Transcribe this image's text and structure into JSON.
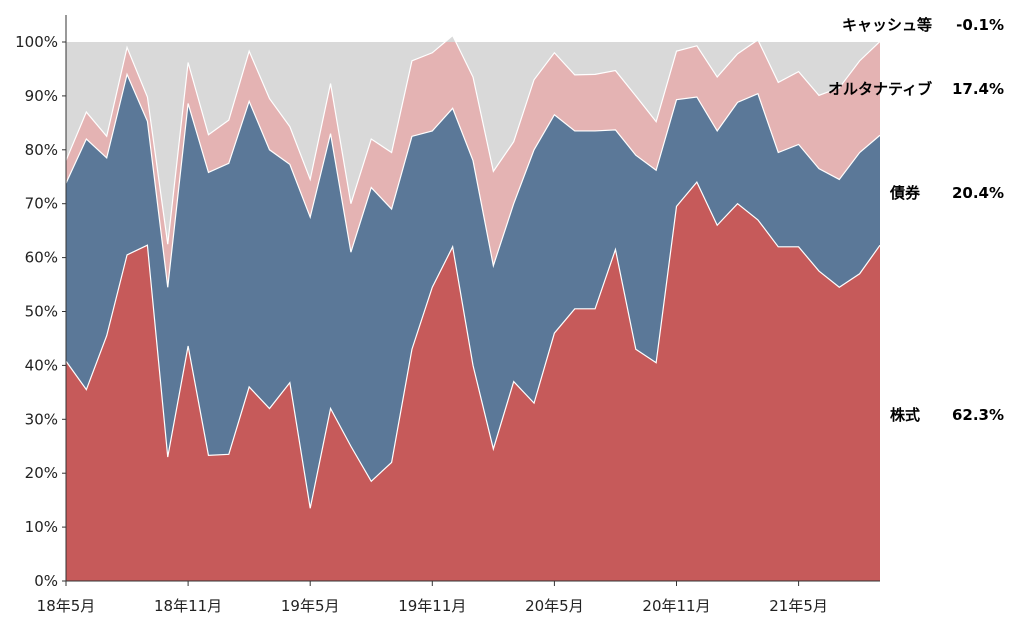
{
  "chart_data": {
    "type": "area",
    "stacked": true,
    "ylim": [
      0,
      100
    ],
    "yticks": [
      "0%",
      "10%",
      "20%",
      "30%",
      "40%",
      "50%",
      "60%",
      "70%",
      "80%",
      "90%",
      "100%"
    ],
    "xtick_labels": [
      {
        "index": 0,
        "label": "18年5月"
      },
      {
        "index": 6,
        "label": "18年11月"
      },
      {
        "index": 12,
        "label": "19年5月"
      },
      {
        "index": 18,
        "label": "19年11月"
      },
      {
        "index": 24,
        "label": "20年5月"
      },
      {
        "index": 30,
        "label": "20年11月"
      },
      {
        "index": 36,
        "label": "21年5月"
      }
    ],
    "n_points": 41,
    "series": [
      {
        "name": "株式",
        "last_label": "62.3%",
        "color": "#c65a5a",
        "values": [
          40.8,
          35.5,
          45.5,
          60.5,
          62.3,
          23,
          43.6,
          23.3,
          23.5,
          36,
          32,
          36.8,
          13.5,
          32,
          25,
          18.5,
          22,
          43,
          54.5,
          62,
          40,
          24.5,
          37,
          33,
          46,
          50.5,
          50.5,
          61.5,
          43,
          40.5,
          69.5,
          74,
          66,
          70,
          67,
          62,
          62,
          57.5,
          54.5,
          57,
          62.3
        ]
      },
      {
        "name": "債券",
        "last_label": "20.4%",
        "color": "#5b7898",
        "values": [
          33,
          46.5,
          33,
          33.5,
          23,
          31.5,
          45,
          52.5,
          54,
          53,
          48,
          40.5,
          54,
          51,
          36,
          54.5,
          47,
          39.5,
          29,
          25.7,
          38,
          34,
          33,
          47,
          40.5,
          33,
          33,
          22.2,
          36,
          35.7,
          19.8,
          15.8,
          17.5,
          18.8,
          23.4,
          17.5,
          19,
          19,
          20,
          22.5,
          20.4
        ]
      },
      {
        "name": "オルタナティブ",
        "last_label": "17.4%",
        "color": "#e4b3b3",
        "values": [
          4.2,
          5,
          4,
          5,
          4.5,
          8,
          7.6,
          7,
          8,
          9.3,
          9.5,
          7,
          7,
          9.3,
          9,
          9,
          10.5,
          14,
          14.5,
          13.5,
          15.5,
          17.5,
          11.5,
          13,
          11.5,
          10.4,
          10.5,
          11,
          11,
          9,
          9,
          9.5,
          10,
          9,
          10,
          13,
          13.5,
          13.6,
          17,
          17,
          17.4
        ]
      },
      {
        "name": "キャッシュ等",
        "last_label": "-0.1%",
        "color": "#d9d9d9",
        "values": [
          22,
          13,
          17.5,
          1,
          10.2,
          37.5,
          3.8,
          17.2,
          14.5,
          1.7,
          10.5,
          15.7,
          25.5,
          7.7,
          30,
          18,
          20.5,
          3.5,
          2,
          -1.2,
          6.5,
          24,
          18.5,
          7,
          2,
          6.1,
          6,
          5.3,
          10,
          14.8,
          1.7,
          0.7,
          6.5,
          2.2,
          -0.4,
          7.5,
          5.5,
          9.9,
          8.5,
          3.5,
          -0.1
        ]
      }
    ],
    "legend": "right, at end of each series"
  }
}
